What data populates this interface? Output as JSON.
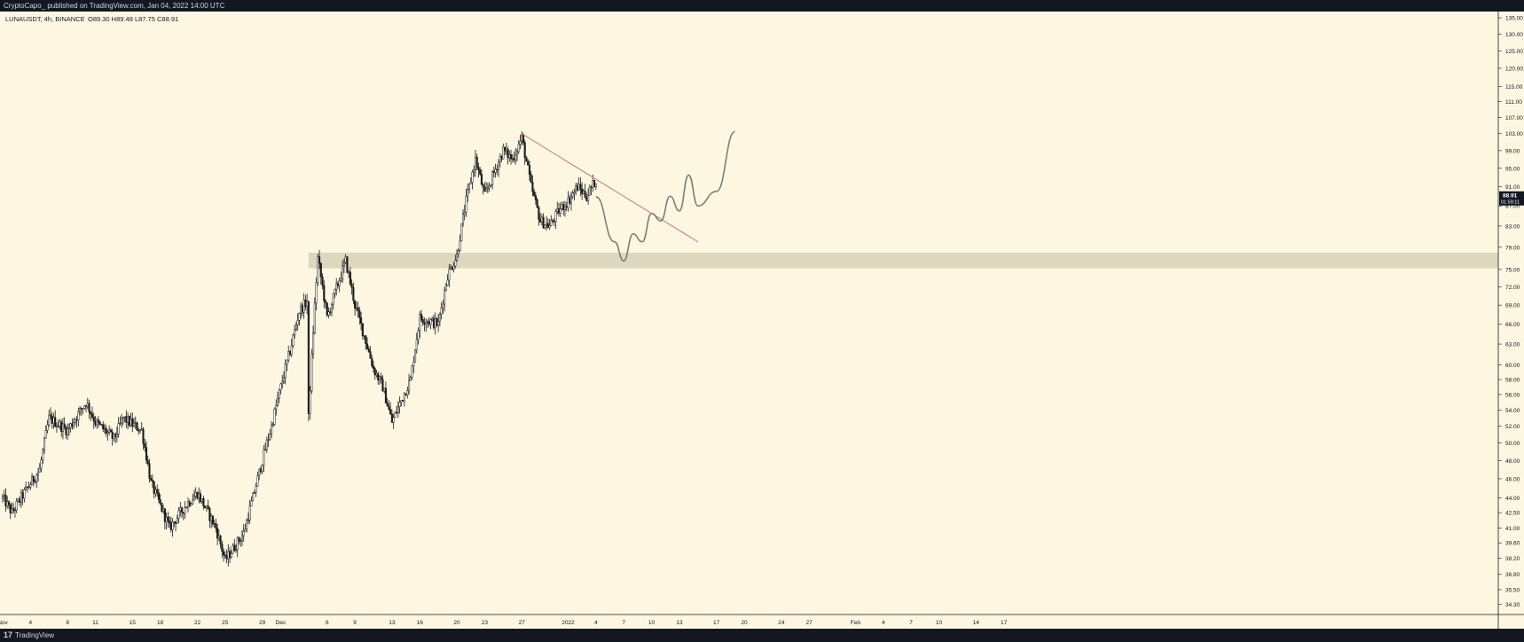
{
  "header": {
    "publisher": "CryptoCapo_ published on TradingView.com, Jan 04, 2022 14:00 UTC"
  },
  "legend": {
    "symbol": "LUNAUSDT, 4h, BINANCE",
    "ohlc": "O89.30 H89.48 L87.75 C88.91"
  },
  "footer": {
    "logo_mark": "17",
    "logo_text": "TradingView"
  },
  "colors": {
    "background": "#fdf7e1",
    "candle": "#1a1a1a",
    "support_zone": "#d9d3b9",
    "trendline": "#c9787a",
    "projection": "#7d7f77"
  },
  "chart_data": {
    "type": "candlestick",
    "timeframe": "4h",
    "y_axis": {
      "scale": "log",
      "ticks": [
        "34.30",
        "35.50",
        "36.80",
        "38.20",
        "39.60",
        "41.00",
        "42.50",
        "44.00",
        "46.00",
        "48.00",
        "50.00",
        "52.00",
        "54.00",
        "56.00",
        "58.00",
        "60.00",
        "63.00",
        "66.00",
        "69.00",
        "72.00",
        "75.00",
        "79.00",
        "83.00",
        "87.00",
        "91.00",
        "95.00",
        "99.00",
        "103.00",
        "107.00",
        "111.00",
        "115.00",
        "120.00",
        "125.00",
        "130.00",
        "135.00"
      ],
      "range": [
        33.5,
        137
      ]
    },
    "x_axis": {
      "ticks": [
        "Nov",
        "4",
        "8",
        "11",
        "15",
        "18",
        "22",
        "25",
        "29",
        "Dec",
        "6",
        "9",
        "13",
        "16",
        "20",
        "23",
        "27",
        "2022",
        "4",
        "7",
        "10",
        "13",
        "17",
        "20",
        "24",
        "27",
        "Feb",
        "4",
        "7",
        "10",
        "14",
        "17"
      ]
    },
    "last_price": {
      "value": "88.91",
      "countdown": "01:59:11"
    },
    "support_zone": {
      "low": 75.2,
      "high": 78.0
    },
    "trendline": {
      "from": {
        "date": "Dec 27",
        "price": 103.0
      },
      "to": {
        "date": "Jan 15",
        "price": 80.0
      }
    },
    "approx_price_path": [
      [
        "Nov 1",
        44.0
      ],
      [
        "Nov 2",
        42.5
      ],
      [
        "Nov 5",
        47.0
      ],
      [
        "Nov 6",
        53.0
      ],
      [
        "Nov 8",
        51.5
      ],
      [
        "Nov 10",
        55.0
      ],
      [
        "Nov 11",
        52.5
      ],
      [
        "Nov 13",
        50.5
      ],
      [
        "Nov 14",
        53.0
      ],
      [
        "Nov 16",
        51.5
      ],
      [
        "Nov 17",
        45.5
      ],
      [
        "Nov 19",
        41.0
      ],
      [
        "Nov 21",
        43.5
      ],
      [
        "Nov 22",
        44.5
      ],
      [
        "Nov 24",
        41.0
      ],
      [
        "Nov 25",
        38.0
      ],
      [
        "Nov 27",
        40.5
      ],
      [
        "Nov 28",
        44.0
      ],
      [
        "Nov 30",
        52.0
      ],
      [
        "Dec 2",
        62.0
      ],
      [
        "Dec 3",
        68.0
      ],
      [
        "Dec 4",
        70.0
      ],
      [
        "Dec 4",
        53.0
      ],
      [
        "Dec 5",
        77.0
      ],
      [
        "Dec 6",
        67.0
      ],
      [
        "Dec 8",
        76.5
      ],
      [
        "Dec 9",
        69.0
      ],
      [
        "Dec 11",
        59.5
      ],
      [
        "Dec 12",
        57.0
      ],
      [
        "Dec 13",
        52.5
      ],
      [
        "Dec 15",
        58.0
      ],
      [
        "Dec 16",
        67.0
      ],
      [
        "Dec 18",
        66.0
      ],
      [
        "Dec 19",
        74.0
      ],
      [
        "Dec 20",
        77.5
      ],
      [
        "Dec 21",
        88.0
      ],
      [
        "Dec 22",
        97.0
      ],
      [
        "Dec 23",
        89.0
      ],
      [
        "Dec 24",
        94.0
      ],
      [
        "Dec 25",
        99.0
      ],
      [
        "Dec 26",
        97.0
      ],
      [
        "Dec 27",
        102.0
      ],
      [
        "Dec 28",
        91.0
      ],
      [
        "Dec 29",
        84.0
      ],
      [
        "Dec 30",
        83.0
      ],
      [
        "Dec 31",
        86.0
      ],
      [
        "Jan 1",
        88.0
      ],
      [
        "Jan 2",
        91.0
      ],
      [
        "Jan 3",
        89.0
      ],
      [
        "Jan 4",
        92.5
      ],
      [
        "Jan 4",
        88.9
      ]
    ],
    "projection_path": [
      [
        "Jan 4",
        88.9
      ],
      [
        "Jan 6",
        80.0
      ],
      [
        "Jan 7",
        76.5
      ],
      [
        "Jan 8",
        81.5
      ],
      [
        "Jan 9",
        80.0
      ],
      [
        "Jan 10",
        85.5
      ],
      [
        "Jan 11",
        84.0
      ],
      [
        "Jan 12",
        89.0
      ],
      [
        "Jan 13",
        86.0
      ],
      [
        "Jan 14",
        93.5
      ],
      [
        "Jan 15",
        87.0
      ],
      [
        "Jan 17",
        90.0
      ],
      [
        "Jan 19",
        103.5
      ]
    ]
  }
}
